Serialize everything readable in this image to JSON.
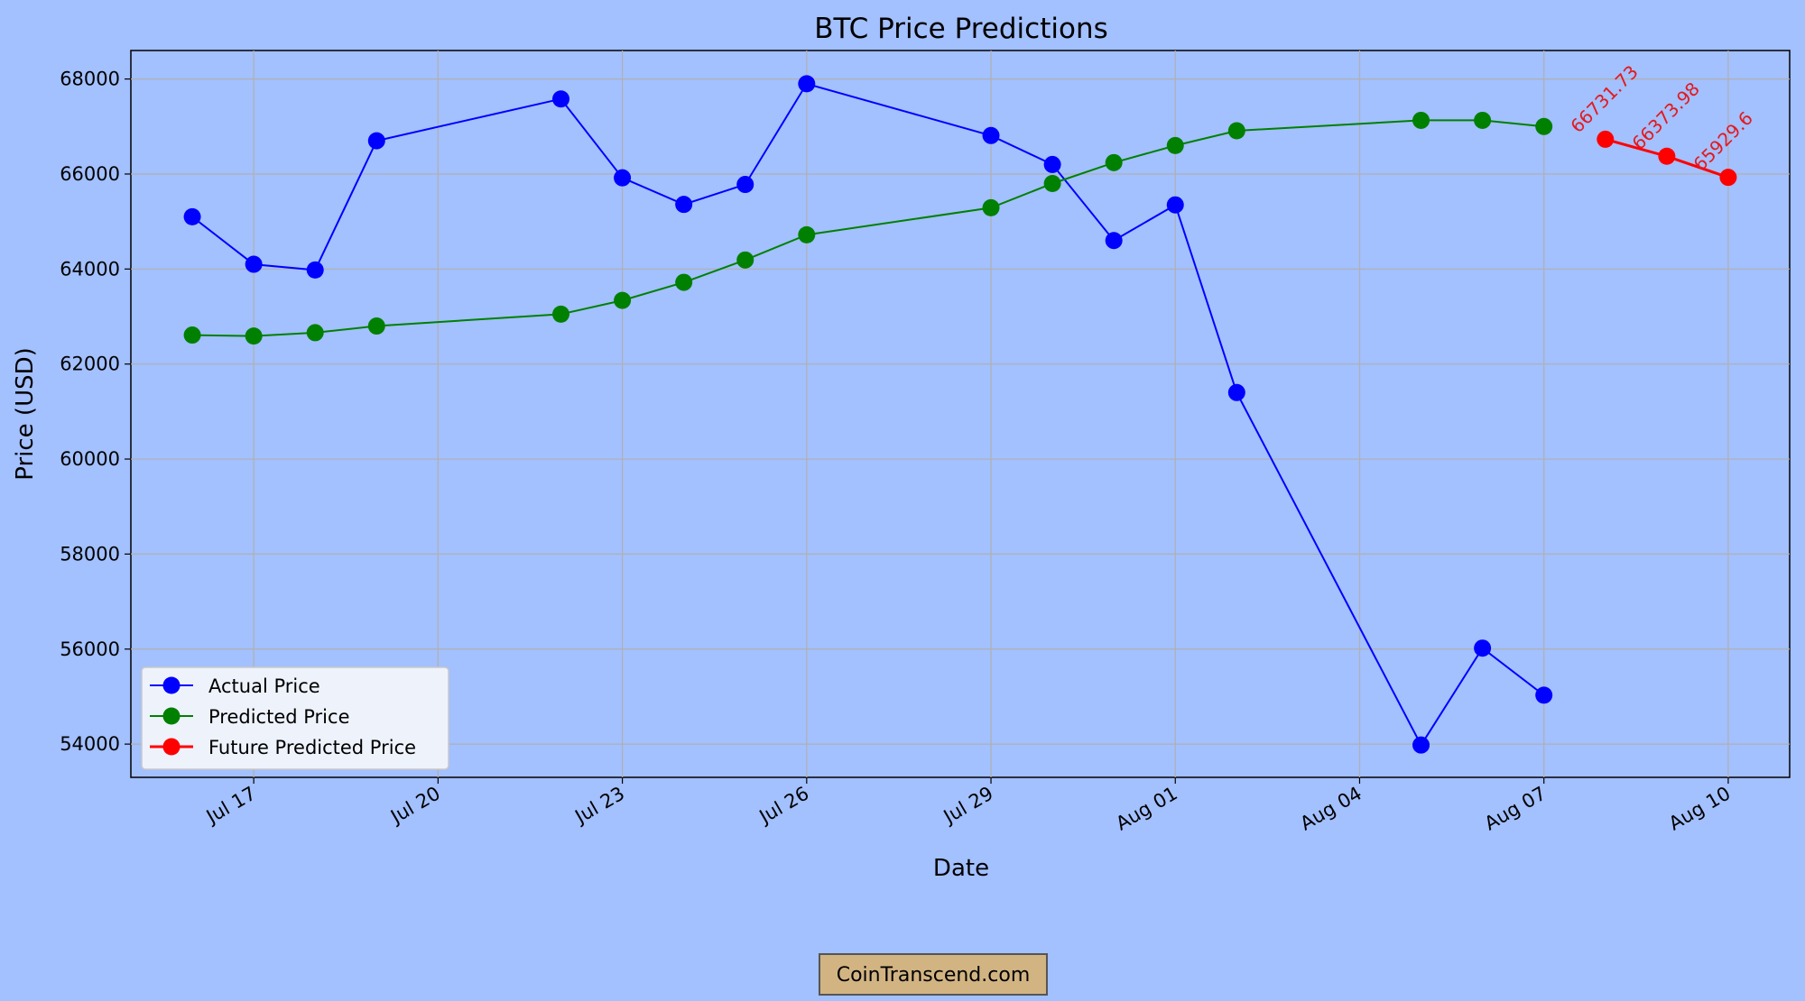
{
  "chart_data": {
    "type": "line",
    "title": "BTC Price Predictions",
    "xlabel": "Date",
    "ylabel": "Price (USD)",
    "x_ticks": [
      "Jul 17",
      "Jul 20",
      "Jul 23",
      "Jul 26",
      "Jul 29",
      "Aug 01",
      "Aug 04",
      "Aug 07",
      "Aug 10"
    ],
    "y_ticks": [
      "54000",
      "56000",
      "58000",
      "60000",
      "62000",
      "64000",
      "66000",
      "68000"
    ],
    "ylim": [
      53300,
      68600
    ],
    "xlim": [
      "2024-07-15",
      "2024-08-11"
    ],
    "grid": true,
    "legend_position": "lower-left",
    "series": [
      {
        "name": "Actual Price",
        "color": "#0000ff",
        "x": [
          "2024-07-16",
          "2024-07-17",
          "2024-07-18",
          "2024-07-19",
          "2024-07-22",
          "2024-07-23",
          "2024-07-24",
          "2024-07-25",
          "2024-07-26",
          "2024-07-29",
          "2024-07-30",
          "2024-07-31",
          "2024-08-01",
          "2024-08-02",
          "2024-08-05",
          "2024-08-06",
          "2024-08-07"
        ],
        "values": [
          65100,
          64100,
          63980,
          66700,
          67580,
          65920,
          65360,
          65780,
          67900,
          66810,
          66200,
          64600,
          65350,
          61400,
          53980,
          56020,
          55030
        ]
      },
      {
        "name": "Predicted Price",
        "color": "#008000",
        "x": [
          "2024-07-16",
          "2024-07-17",
          "2024-07-18",
          "2024-07-19",
          "2024-07-22",
          "2024-07-23",
          "2024-07-24",
          "2024-07-25",
          "2024-07-26",
          "2024-07-29",
          "2024-07-30",
          "2024-07-31",
          "2024-08-01",
          "2024-08-02",
          "2024-08-05",
          "2024-08-06",
          "2024-08-07"
        ],
        "values": [
          62610,
          62590,
          62660,
          62800,
          63050,
          63340,
          63720,
          64190,
          64720,
          65290,
          65800,
          66240,
          66600,
          66910,
          67130,
          67130,
          67000
        ]
      },
      {
        "name": "Future Predicted Price",
        "color": "#ff0000",
        "x": [
          "2024-08-08",
          "2024-08-09",
          "2024-08-10"
        ],
        "values": [
          66731.73,
          66373.98,
          65929.6
        ],
        "data_labels": [
          "66731.73",
          "66373.98",
          "65929.6"
        ]
      }
    ]
  },
  "watermark": {
    "text": "CoinTranscend.com"
  }
}
